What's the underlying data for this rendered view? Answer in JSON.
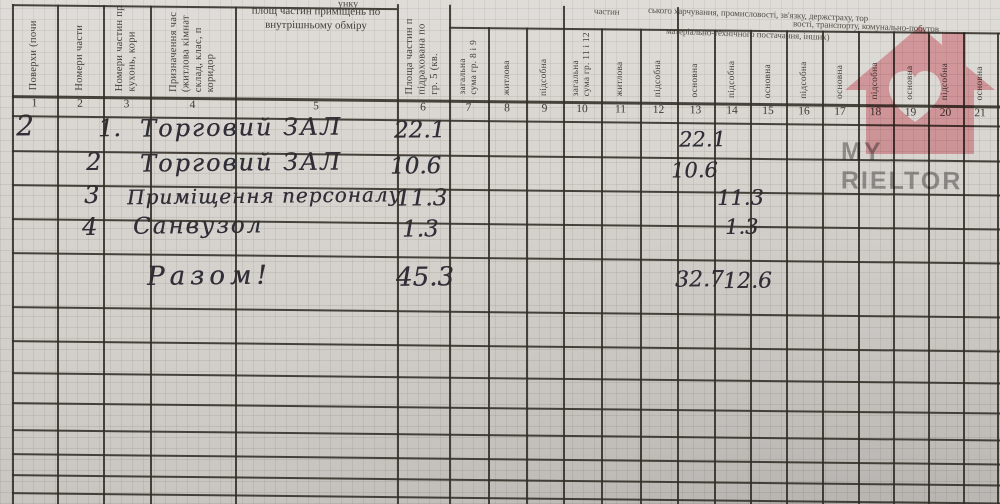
{
  "header": {
    "col_numbers": [
      "1",
      "2",
      "3",
      "4",
      "5",
      "6",
      "7",
      "8",
      "9",
      "10",
      "11",
      "12",
      "13",
      "14",
      "15",
      "16",
      "17",
      "18",
      "19",
      "20",
      "21"
    ],
    "c1": "Поверхи (почи",
    "c2": "Номери части",
    "c3_l1": "Номери частин пр",
    "c3_l2": "кухонь, кори",
    "c4_l1": "Призначення час",
    "c4_l2": "(житлова кімнат",
    "c4_l3": "склад, клас, п",
    "c4_l4": "коридор",
    "c5_frag": "унку",
    "c5_l1": "площ частин приміщень по",
    "c5_l2": "внутрішньому обміру",
    "c6_l1": "Площа частин п",
    "c6_l2": "підрахована по",
    "c6_l3": "гр. 5 (кв.",
    "c7_l1": "загальна",
    "c7_l2": "сума гр. 8 і 9",
    "c8": "житлова",
    "c9": "підсобна",
    "c10_l1": "загальна",
    "c10_l2": "сума гр. 11 і 12",
    "c11": "житлова",
    "c12": "підсобна",
    "c13": "основна",
    "c14": "підсобна",
    "c15": "основна",
    "c16": "підсобна",
    "c17": "основна",
    "c18": "підсобна",
    "c19": "основна",
    "c20": "підсобна",
    "c21": "основна",
    "note_l1": "ського харчування, промисловості, зв'язку, держстраху, тор",
    "note_l2": "вості, транспорту, комунально-побутов",
    "note_l3": "матеріально-технічного постачання, інших)",
    "note_frag": "частин"
  },
  "entries": {
    "floor": "2",
    "r1": {
      "num": "1.",
      "name": "Торговий ЗАЛ",
      "area": "22.1",
      "main": "22.1"
    },
    "r2": {
      "num": "2",
      "name": "Торговий ЗАЛ",
      "area": "10.6",
      "main": "10.6"
    },
    "r3": {
      "num": "3",
      "name": "Приміщення персоналу",
      "area": "11.3",
      "aux": "11.3"
    },
    "r4": {
      "num": "4",
      "name": "Санвузол",
      "area": "1.3",
      "aux": "1.3"
    },
    "total": {
      "label": "Разом!",
      "area": "45.3",
      "main": "32.7",
      "aux": "12.6"
    }
  },
  "watermark": {
    "brand": "MY RIELTOR"
  }
}
